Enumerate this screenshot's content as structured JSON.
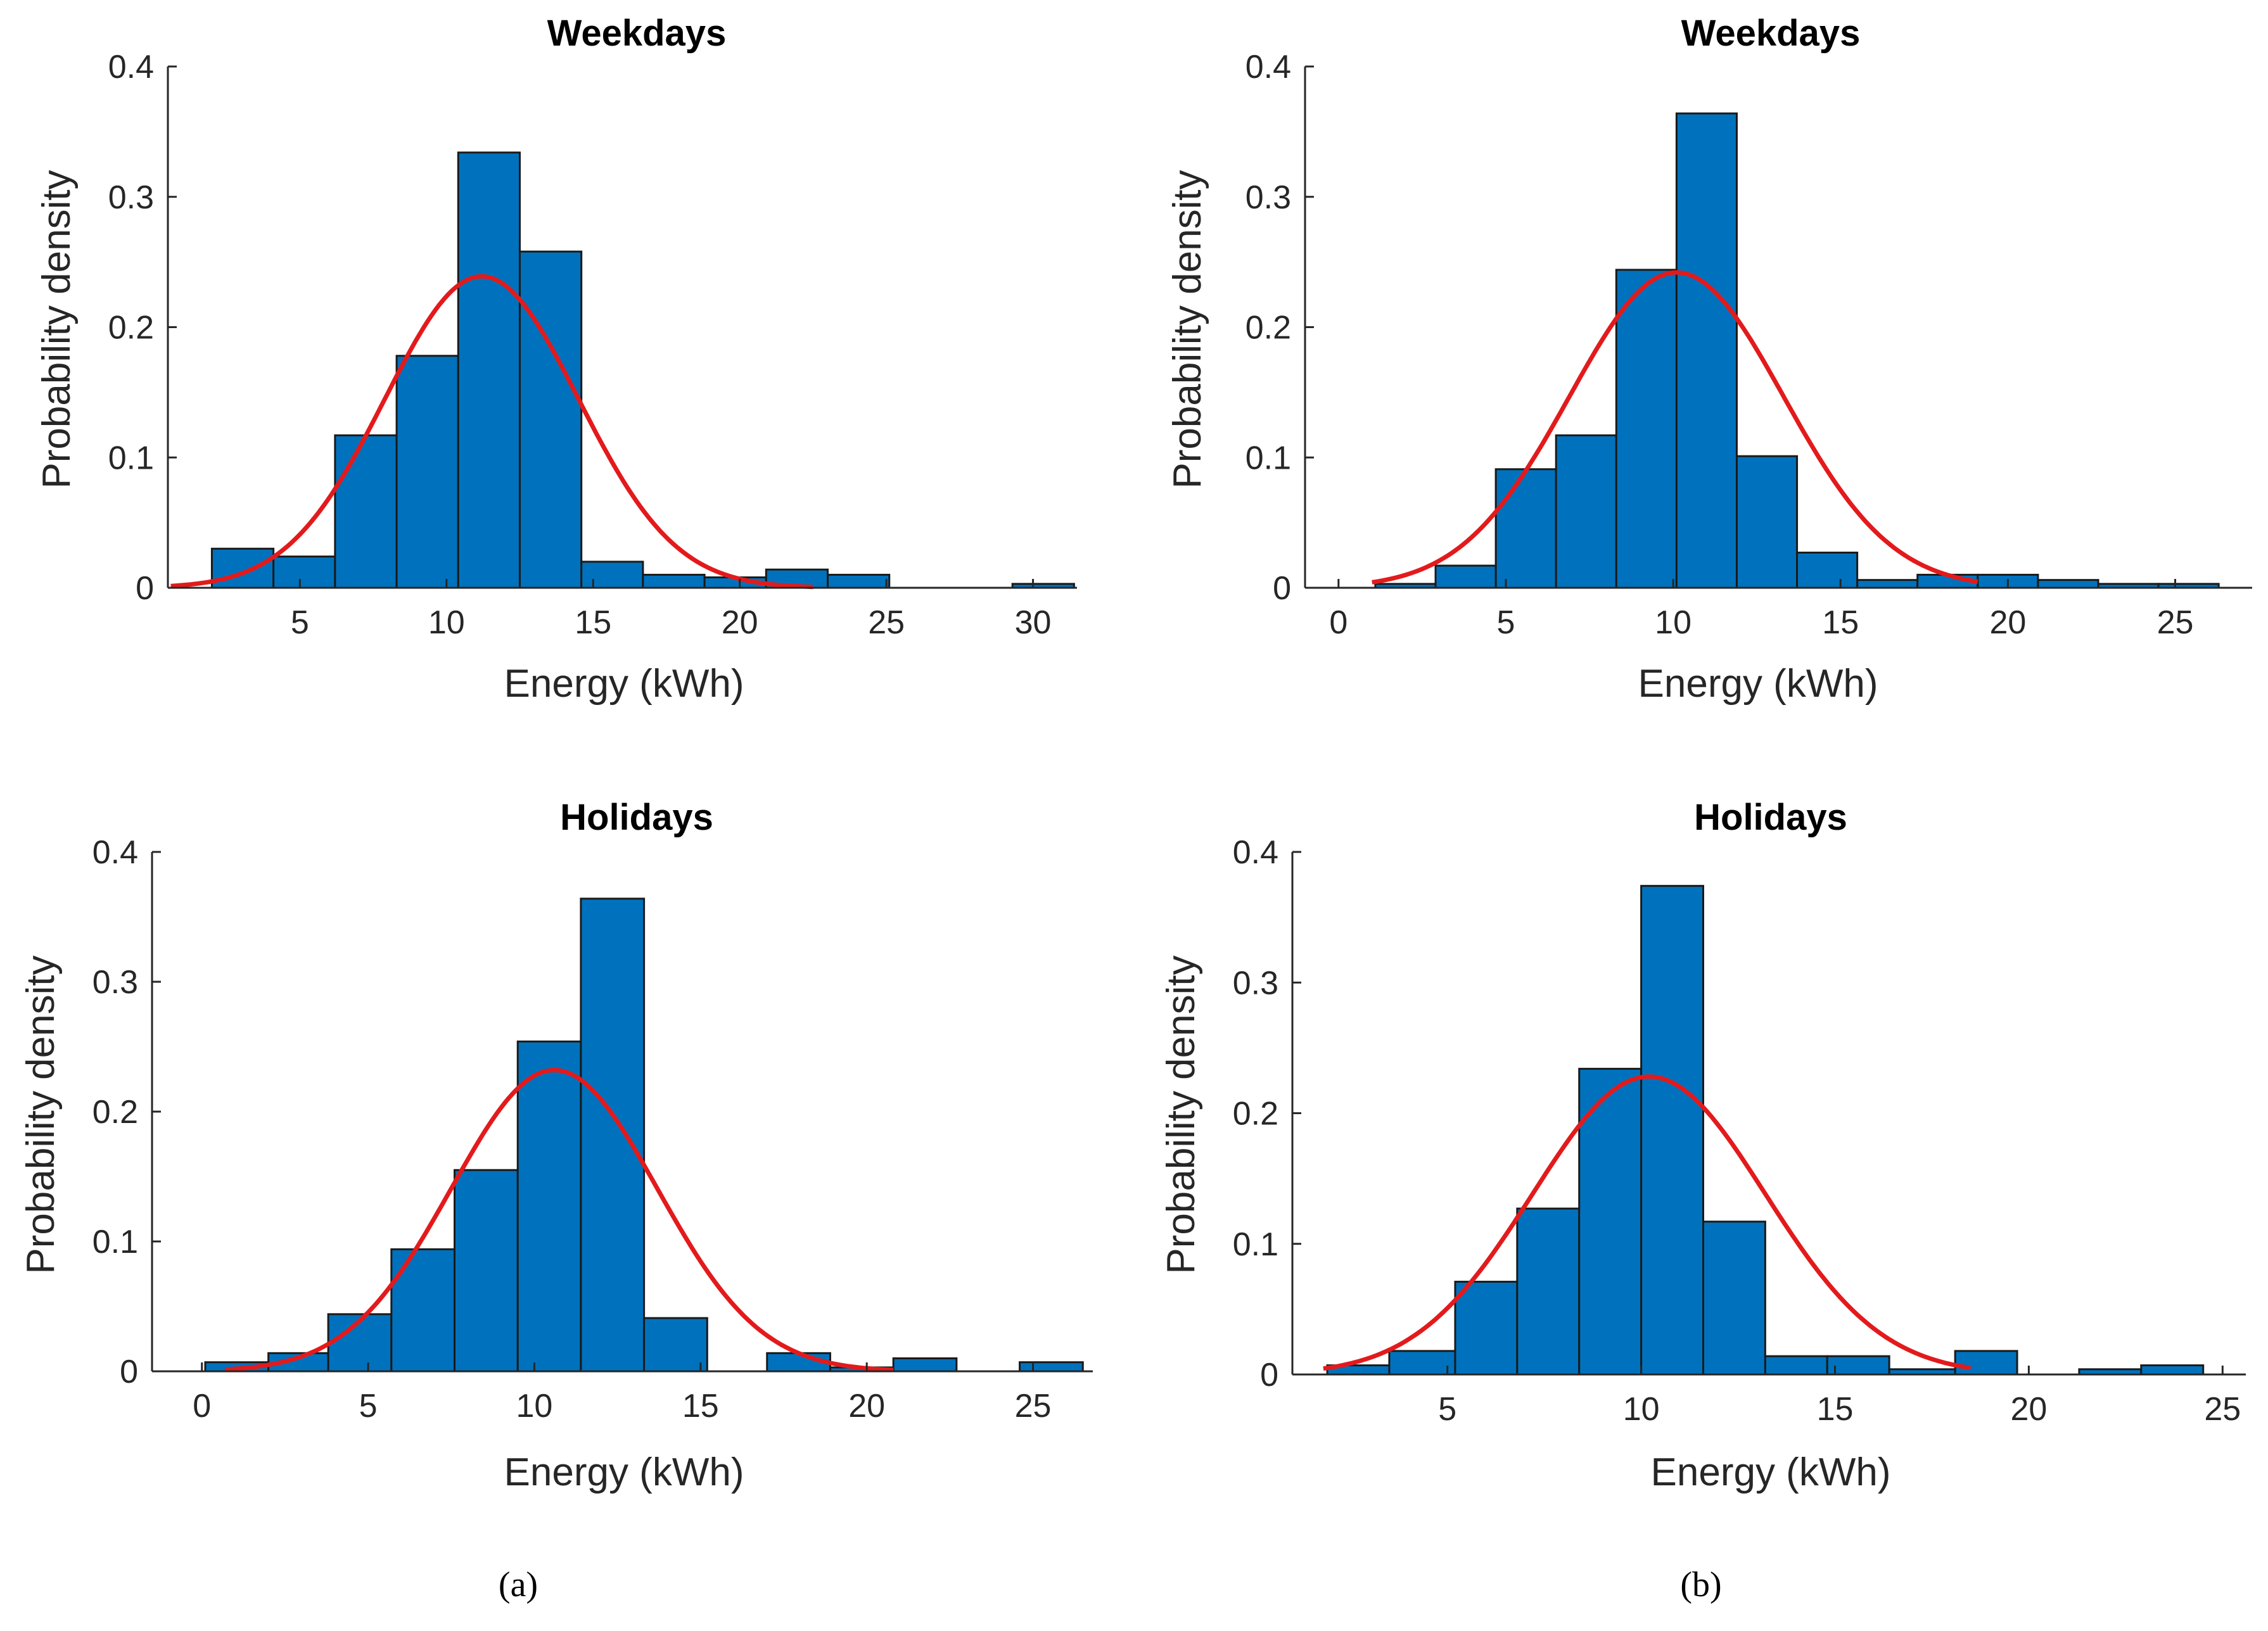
{
  "colors": {
    "bar": "#0072BD",
    "curve": "#E31A1C"
  },
  "chart_data": [
    {
      "type": "bar",
      "title": "Weekdays",
      "xlabel": "Energy (kWh)",
      "ylabel": "Probability density",
      "xlim": [
        0.5,
        31.5
      ],
      "ylim": [
        0,
        0.4
      ],
      "xticks": [
        5,
        10,
        15,
        20,
        25,
        30
      ],
      "yticks": [
        0,
        0.1,
        0.2,
        0.3,
        0.4
      ],
      "ytick_labels": [
        "0",
        "0.1",
        "0.2",
        "0.3",
        "0.4"
      ],
      "bins": [
        [
          2.0,
          4.1,
          0.03
        ],
        [
          4.1,
          6.2,
          0.024
        ],
        [
          6.2,
          8.3,
          0.117
        ],
        [
          8.3,
          10.4,
          0.178
        ],
        [
          10.4,
          12.5,
          0.334
        ],
        [
          12.5,
          14.6,
          0.258
        ],
        [
          14.6,
          16.7,
          0.02
        ],
        [
          16.7,
          18.8,
          0.01
        ],
        [
          18.8,
          20.9,
          0.008
        ],
        [
          20.9,
          23.0,
          0.014
        ],
        [
          23.0,
          25.1,
          0.01
        ],
        [
          29.3,
          31.4,
          0.003
        ]
      ],
      "fit": {
        "mean": 11.2,
        "peak": 0.239,
        "sd": 3.3,
        "xrange": [
          0.6,
          22.5
        ]
      },
      "caption": "(a)"
    },
    {
      "type": "bar",
      "title": "Weekdays",
      "xlabel": "Energy (kWh)",
      "ylabel": "Probability density",
      "xlim": [
        -1,
        27.3
      ],
      "ylim": [
        0,
        0.4
      ],
      "xticks": [
        0,
        5,
        10,
        15,
        20,
        25
      ],
      "yticks": [
        0,
        0.1,
        0.2,
        0.3,
        0.4
      ],
      "ytick_labels": [
        "0",
        "0.1",
        "0.2",
        "0.3",
        "0.4"
      ],
      "bins": [
        [
          1.1,
          2.9,
          0.003
        ],
        [
          2.9,
          4.7,
          0.017
        ],
        [
          4.7,
          6.5,
          0.091
        ],
        [
          6.5,
          8.3,
          0.117
        ],
        [
          8.3,
          10.1,
          0.244
        ],
        [
          10.1,
          11.9,
          0.364
        ],
        [
          11.9,
          13.7,
          0.101
        ],
        [
          13.7,
          15.5,
          0.027
        ],
        [
          15.5,
          17.3,
          0.006
        ],
        [
          17.3,
          19.1,
          0.01
        ],
        [
          19.1,
          20.9,
          0.01
        ],
        [
          20.9,
          22.7,
          0.006
        ],
        [
          22.7,
          24.5,
          0.003
        ],
        [
          24.5,
          26.3,
          0.003
        ]
      ],
      "fit": {
        "mean": 10.1,
        "peak": 0.242,
        "sd": 3.2,
        "xrange": [
          1.0,
          19.1
        ]
      }
    },
    {
      "type": "bar",
      "title": "Holidays",
      "xlabel": "Energy (kWh)",
      "ylabel": "Probability density",
      "xlim": [
        -1.5,
        26.8
      ],
      "ylim": [
        0,
        0.4
      ],
      "xticks": [
        0,
        5,
        10,
        15,
        20,
        25
      ],
      "yticks": [
        0,
        0.1,
        0.2,
        0.3,
        0.4
      ],
      "ytick_labels": [
        "0",
        "0.1",
        "0.2",
        "0.3",
        "0.4"
      ],
      "bins": [
        [
          0.1,
          2.0,
          0.007
        ],
        [
          2.0,
          3.8,
          0.014
        ],
        [
          3.8,
          5.7,
          0.044
        ],
        [
          5.7,
          7.6,
          0.094
        ],
        [
          7.6,
          9.5,
          0.155
        ],
        [
          9.5,
          11.4,
          0.254
        ],
        [
          11.4,
          13.3,
          0.364
        ],
        [
          13.3,
          15.2,
          0.041
        ],
        [
          17.0,
          18.9,
          0.014
        ],
        [
          18.9,
          20.8,
          0.003
        ],
        [
          20.8,
          22.7,
          0.01
        ],
        [
          24.6,
          26.5,
          0.007
        ]
      ],
      "fit": {
        "mean": 10.6,
        "peak": 0.232,
        "sd": 3.1,
        "xrange": [
          0.7,
          20.8
        ]
      },
      "caption": "(a)"
    },
    {
      "type": "bar",
      "title": "Holidays",
      "xlabel": "Energy (kWh)",
      "ylabel": "Probability density",
      "xlim": [
        1,
        25.6
      ],
      "ylim": [
        0,
        0.4
      ],
      "xticks": [
        5,
        10,
        15,
        20,
        25
      ],
      "yticks": [
        0,
        0.1,
        0.2,
        0.3,
        0.4
      ],
      "ytick_labels": [
        "0",
        "0.1",
        "0.2",
        "0.3",
        "0.4"
      ],
      "bins": [
        [
          1.9,
          3.5,
          0.007
        ],
        [
          3.5,
          5.2,
          0.018
        ],
        [
          5.2,
          6.8,
          0.071
        ],
        [
          6.8,
          8.4,
          0.127
        ],
        [
          8.4,
          10.0,
          0.234
        ],
        [
          10.0,
          11.6,
          0.374
        ],
        [
          11.6,
          13.2,
          0.117
        ],
        [
          13.2,
          14.8,
          0.014
        ],
        [
          14.8,
          16.4,
          0.014
        ],
        [
          16.4,
          18.1,
          0.004
        ],
        [
          18.1,
          19.7,
          0.018
        ],
        [
          21.3,
          22.9,
          0.004
        ],
        [
          22.9,
          24.5,
          0.007
        ]
      ],
      "fit": {
        "mean": 10.2,
        "peak": 0.228,
        "sd": 3.0,
        "xrange": [
          1.8,
          18.5
        ]
      },
      "caption": "(b)"
    }
  ]
}
